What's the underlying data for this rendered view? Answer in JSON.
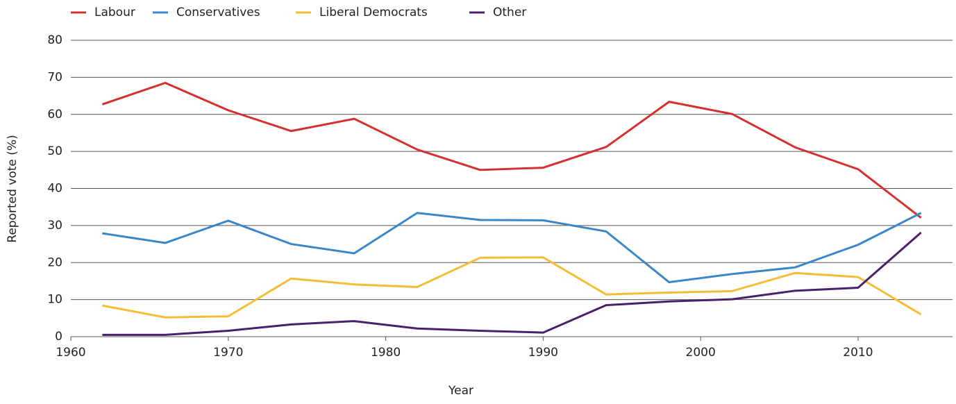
{
  "chart_data": {
    "type": "line",
    "x_label": "Year",
    "y_label": "Reported vote (%)",
    "x": [
      1962,
      1966,
      1970,
      1974,
      1978,
      1982,
      1986,
      1990,
      1994,
      1998,
      2002,
      2006,
      2010,
      2014
    ],
    "series": [
      {
        "name": "Labour",
        "color": "#d62f2f",
        "values": [
          62.7,
          68.5,
          61.1,
          55.5,
          58.8,
          50.5,
          45.0,
          45.6,
          51.2,
          63.4,
          60.1,
          51.1,
          45.2,
          32.1
        ]
      },
      {
        "name": "Conservatives",
        "color": "#3a87c7",
        "values": [
          27.9,
          25.3,
          31.3,
          25.0,
          22.5,
          33.4,
          31.5,
          31.4,
          28.4,
          14.7,
          16.9,
          18.7,
          24.8,
          33.4
        ]
      },
      {
        "name": "Liberal Democrats",
        "color": "#f5bd36",
        "values": [
          8.4,
          5.2,
          5.5,
          15.7,
          14.1,
          13.4,
          21.3,
          21.4,
          11.4,
          11.9,
          12.3,
          17.2,
          16.1,
          6.0
        ]
      },
      {
        "name": "Other",
        "color": "#4a1f6b",
        "values": [
          0.5,
          0.5,
          1.6,
          3.3,
          4.2,
          2.2,
          1.6,
          1.1,
          8.5,
          9.5,
          10.1,
          12.4,
          13.2,
          28.1
        ]
      }
    ],
    "xlim": [
      1960,
      2016
    ],
    "xticks": [
      1960,
      1970,
      1980,
      1990,
      2000,
      2010
    ],
    "ylim": [
      0,
      80
    ],
    "yticks": [
      0,
      10,
      20,
      30,
      40,
      50,
      60,
      70,
      80
    ],
    "grid": true,
    "legend": "top-left"
  }
}
